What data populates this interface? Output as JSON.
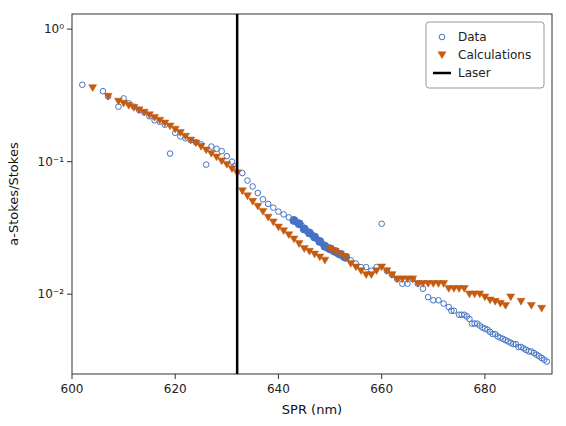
{
  "chart_data": {
    "type": "scatter",
    "xlabel": "SPR (nm)",
    "ylabel": "a-Stokes/Stokes",
    "xlim": [
      600,
      693
    ],
    "ylim": [
      0.0025,
      1.3
    ],
    "log": "y",
    "xticks": [
      600,
      620,
      640,
      660,
      680
    ],
    "yticks": [
      {
        "value": 0.01,
        "label": "10⁻²"
      },
      {
        "value": 0.1,
        "label": "10⁻¹"
      },
      {
        "value": 1,
        "label": "10⁰"
      }
    ],
    "grid": false,
    "legend": "upper right",
    "series": [
      {
        "name": "Data",
        "color": "#4472C4",
        "marker": "open-circle",
        "x": [
          602,
          606,
          607,
          609,
          610,
          611,
          612,
          613,
          614,
          615,
          616,
          617,
          618,
          619,
          620,
          621,
          622,
          623,
          624,
          625,
          626,
          627,
          628,
          629,
          630,
          631,
          631.5,
          633,
          634,
          635,
          636,
          637,
          638,
          639,
          640,
          641,
          642,
          643,
          644,
          644.5,
          645,
          645.5,
          646,
          646.5,
          647,
          647.5,
          648,
          648.5,
          649,
          649.5,
          650,
          650.5,
          651,
          651.5,
          652,
          652.5,
          653,
          654,
          655,
          656,
          657,
          658,
          659,
          660,
          661,
          662,
          663,
          664,
          665,
          666,
          667,
          668,
          669,
          670,
          671,
          672,
          673,
          673.5,
          674,
          675,
          675.5,
          676,
          676.5,
          677,
          677.5,
          678,
          678.5,
          679,
          679.5,
          680,
          680.5,
          681,
          681.5,
          682,
          682.5,
          683,
          683.5,
          684,
          684.5,
          685,
          685.5,
          686,
          686.5,
          687,
          687.5,
          688,
          688.5,
          689,
          689.5,
          690,
          690.5,
          691,
          691.5,
          692
        ],
        "values": [
          0.38,
          0.34,
          0.31,
          0.26,
          0.3,
          0.275,
          0.26,
          0.245,
          0.235,
          0.22,
          0.205,
          0.2,
          0.19,
          0.115,
          0.165,
          0.155,
          0.15,
          0.145,
          0.14,
          0.135,
          0.095,
          0.13,
          0.125,
          0.12,
          0.11,
          0.1,
          0.092,
          0.082,
          0.072,
          0.065,
          0.058,
          0.052,
          0.048,
          0.045,
          0.042,
          0.04,
          0.038,
          0.036,
          0.034,
          0.033,
          0.031,
          0.03,
          0.029,
          0.028,
          0.027,
          0.026,
          0.025,
          0.024,
          0.023,
          0.022,
          0.022,
          0.021,
          0.021,
          0.02,
          0.02,
          0.019,
          0.019,
          0.018,
          0.017,
          0.016,
          0.016,
          0.015,
          0.016,
          0.034,
          0.015,
          0.014,
          0.013,
          0.012,
          0.012,
          0.013,
          0.012,
          0.011,
          0.0095,
          0.009,
          0.009,
          0.0085,
          0.008,
          0.0075,
          0.0075,
          0.007,
          0.007,
          0.007,
          0.0068,
          0.0065,
          0.006,
          0.006,
          0.006,
          0.0058,
          0.0056,
          0.0055,
          0.0054,
          0.0052,
          0.005,
          0.005,
          0.0048,
          0.0047,
          0.0046,
          0.0045,
          0.0044,
          0.0043,
          0.0042,
          0.0042,
          0.004,
          0.004,
          0.0039,
          0.0038,
          0.0037,
          0.0037,
          0.0036,
          0.0035,
          0.0034,
          0.0033,
          0.0032,
          0.0031
        ]
      },
      {
        "color": "#4472C4",
        "marker": "circle",
        "x": [
          643,
          644,
          645,
          646,
          647,
          648,
          649,
          650,
          651,
          652,
          653
        ],
        "values": [
          0.036,
          0.034,
          0.031,
          0.029,
          0.027,
          0.025,
          0.023,
          0.022,
          0.021,
          0.02,
          0.019
        ]
      },
      {
        "name": "Calculations",
        "color": "#C55A11",
        "marker": "triangle-down",
        "x": [
          604,
          607,
          609,
          610,
          611,
          612,
          613,
          614,
          615,
          616,
          617,
          618,
          619,
          620,
          621,
          622,
          623,
          624,
          625,
          626,
          627,
          628,
          629,
          630,
          631,
          632,
          633,
          634,
          635,
          636,
          637,
          638,
          639,
          640,
          641,
          642,
          643,
          644,
          645,
          646,
          647,
          648,
          649,
          650,
          651,
          652,
          653,
          654,
          655,
          656,
          657,
          658,
          659,
          660,
          661,
          662,
          663,
          664,
          665,
          666,
          667,
          668,
          669,
          670,
          671,
          672,
          673,
          674,
          675,
          676,
          677,
          678,
          679,
          680,
          681,
          682,
          683,
          684,
          685,
          687,
          689,
          691
        ],
        "values": [
          0.36,
          0.31,
          0.285,
          0.275,
          0.265,
          0.255,
          0.245,
          0.235,
          0.225,
          0.215,
          0.205,
          0.195,
          0.185,
          0.175,
          0.165,
          0.155,
          0.145,
          0.138,
          0.13,
          0.122,
          0.115,
          0.108,
          0.101,
          0.095,
          0.088,
          0.082,
          0.06,
          0.055,
          0.05,
          0.046,
          0.042,
          0.038,
          0.035,
          0.032,
          0.03,
          0.028,
          0.026,
          0.024,
          0.022,
          0.021,
          0.02,
          0.019,
          0.018,
          0.022,
          0.021,
          0.02,
          0.019,
          0.017,
          0.016,
          0.015,
          0.014,
          0.014,
          0.015,
          0.016,
          0.015,
          0.014,
          0.013,
          0.013,
          0.013,
          0.013,
          0.012,
          0.012,
          0.012,
          0.012,
          0.012,
          0.012,
          0.011,
          0.011,
          0.011,
          0.011,
          0.01,
          0.01,
          0.01,
          0.0095,
          0.009,
          0.0088,
          0.0085,
          0.0082,
          0.0095,
          0.0088,
          0.0082,
          0.0078
        ]
      },
      {
        "name": "Laser",
        "type": "vline",
        "color": "black",
        "x": [
          632
        ]
      }
    ]
  }
}
